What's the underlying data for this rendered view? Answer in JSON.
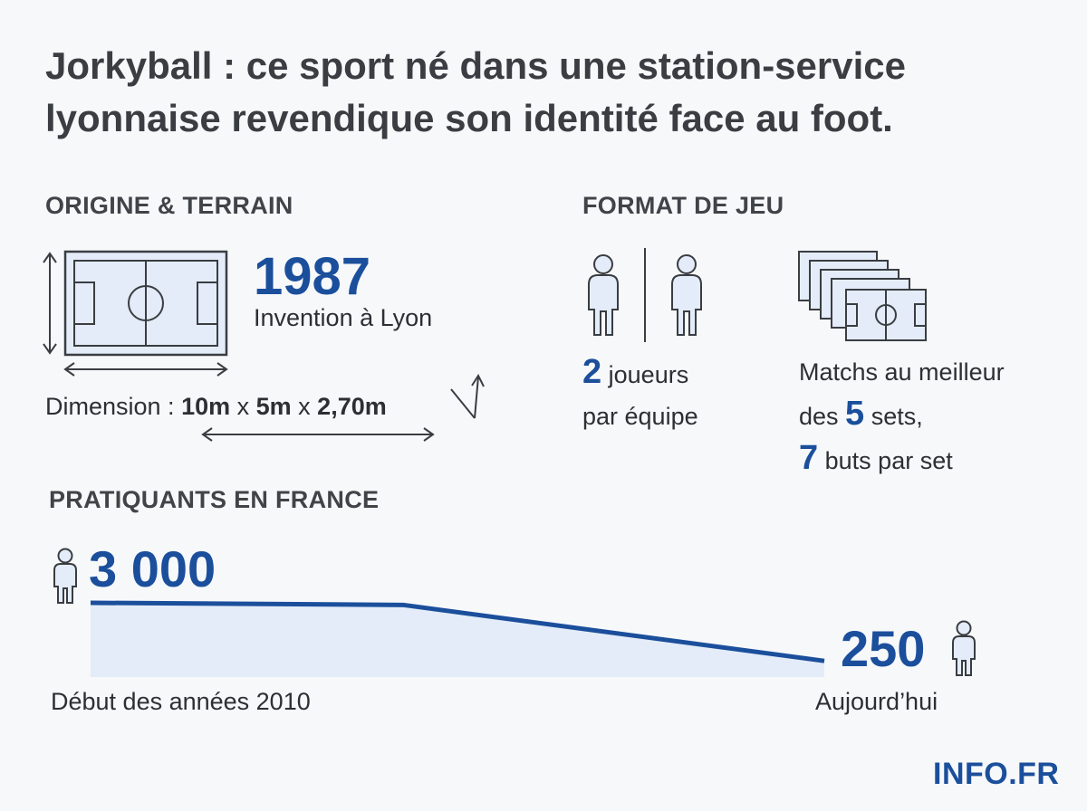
{
  "title": "Jorkyball : ce sport né dans une station-service lyonnaise revendique son identité face au foot.",
  "origin": {
    "heading": "ORIGINE & TERRAIN",
    "year": "1987",
    "year_caption": "Invention à Lyon",
    "dimension_label": "Dimension : ",
    "dim_length": "10m",
    "dim_sep1": " x ",
    "dim_width": "5m",
    "dim_sep2": " x ",
    "dim_height": "2,70m"
  },
  "format": {
    "heading": "FORMAT DE JEU",
    "players_number": "2",
    "players_text_1": " joueurs",
    "players_text_2": "par équipe",
    "matches_line1": "Matchs au meilleur",
    "matches_des": "des ",
    "matches_sets_number": "5",
    "matches_sets_text": " sets,",
    "goals_number": "7",
    "goals_text": " buts par set"
  },
  "practitioners": {
    "heading": "PRATIQUANTS EN FRANCE",
    "start_value": "3 000",
    "end_value": "250",
    "start_label": "Début des années 2010",
    "end_label": "Aujourd’hui",
    "series": [
      3000,
      2900,
      250
    ]
  },
  "brand": "INFO.FR",
  "colors": {
    "accent": "#1b4f9c",
    "text": "#2c2f33",
    "area_fill": "#e3ecf8",
    "background": "#f7f8fa"
  },
  "icons": [
    "field-icon",
    "person-icon",
    "sets-stack-icon",
    "arrow-icon"
  ]
}
